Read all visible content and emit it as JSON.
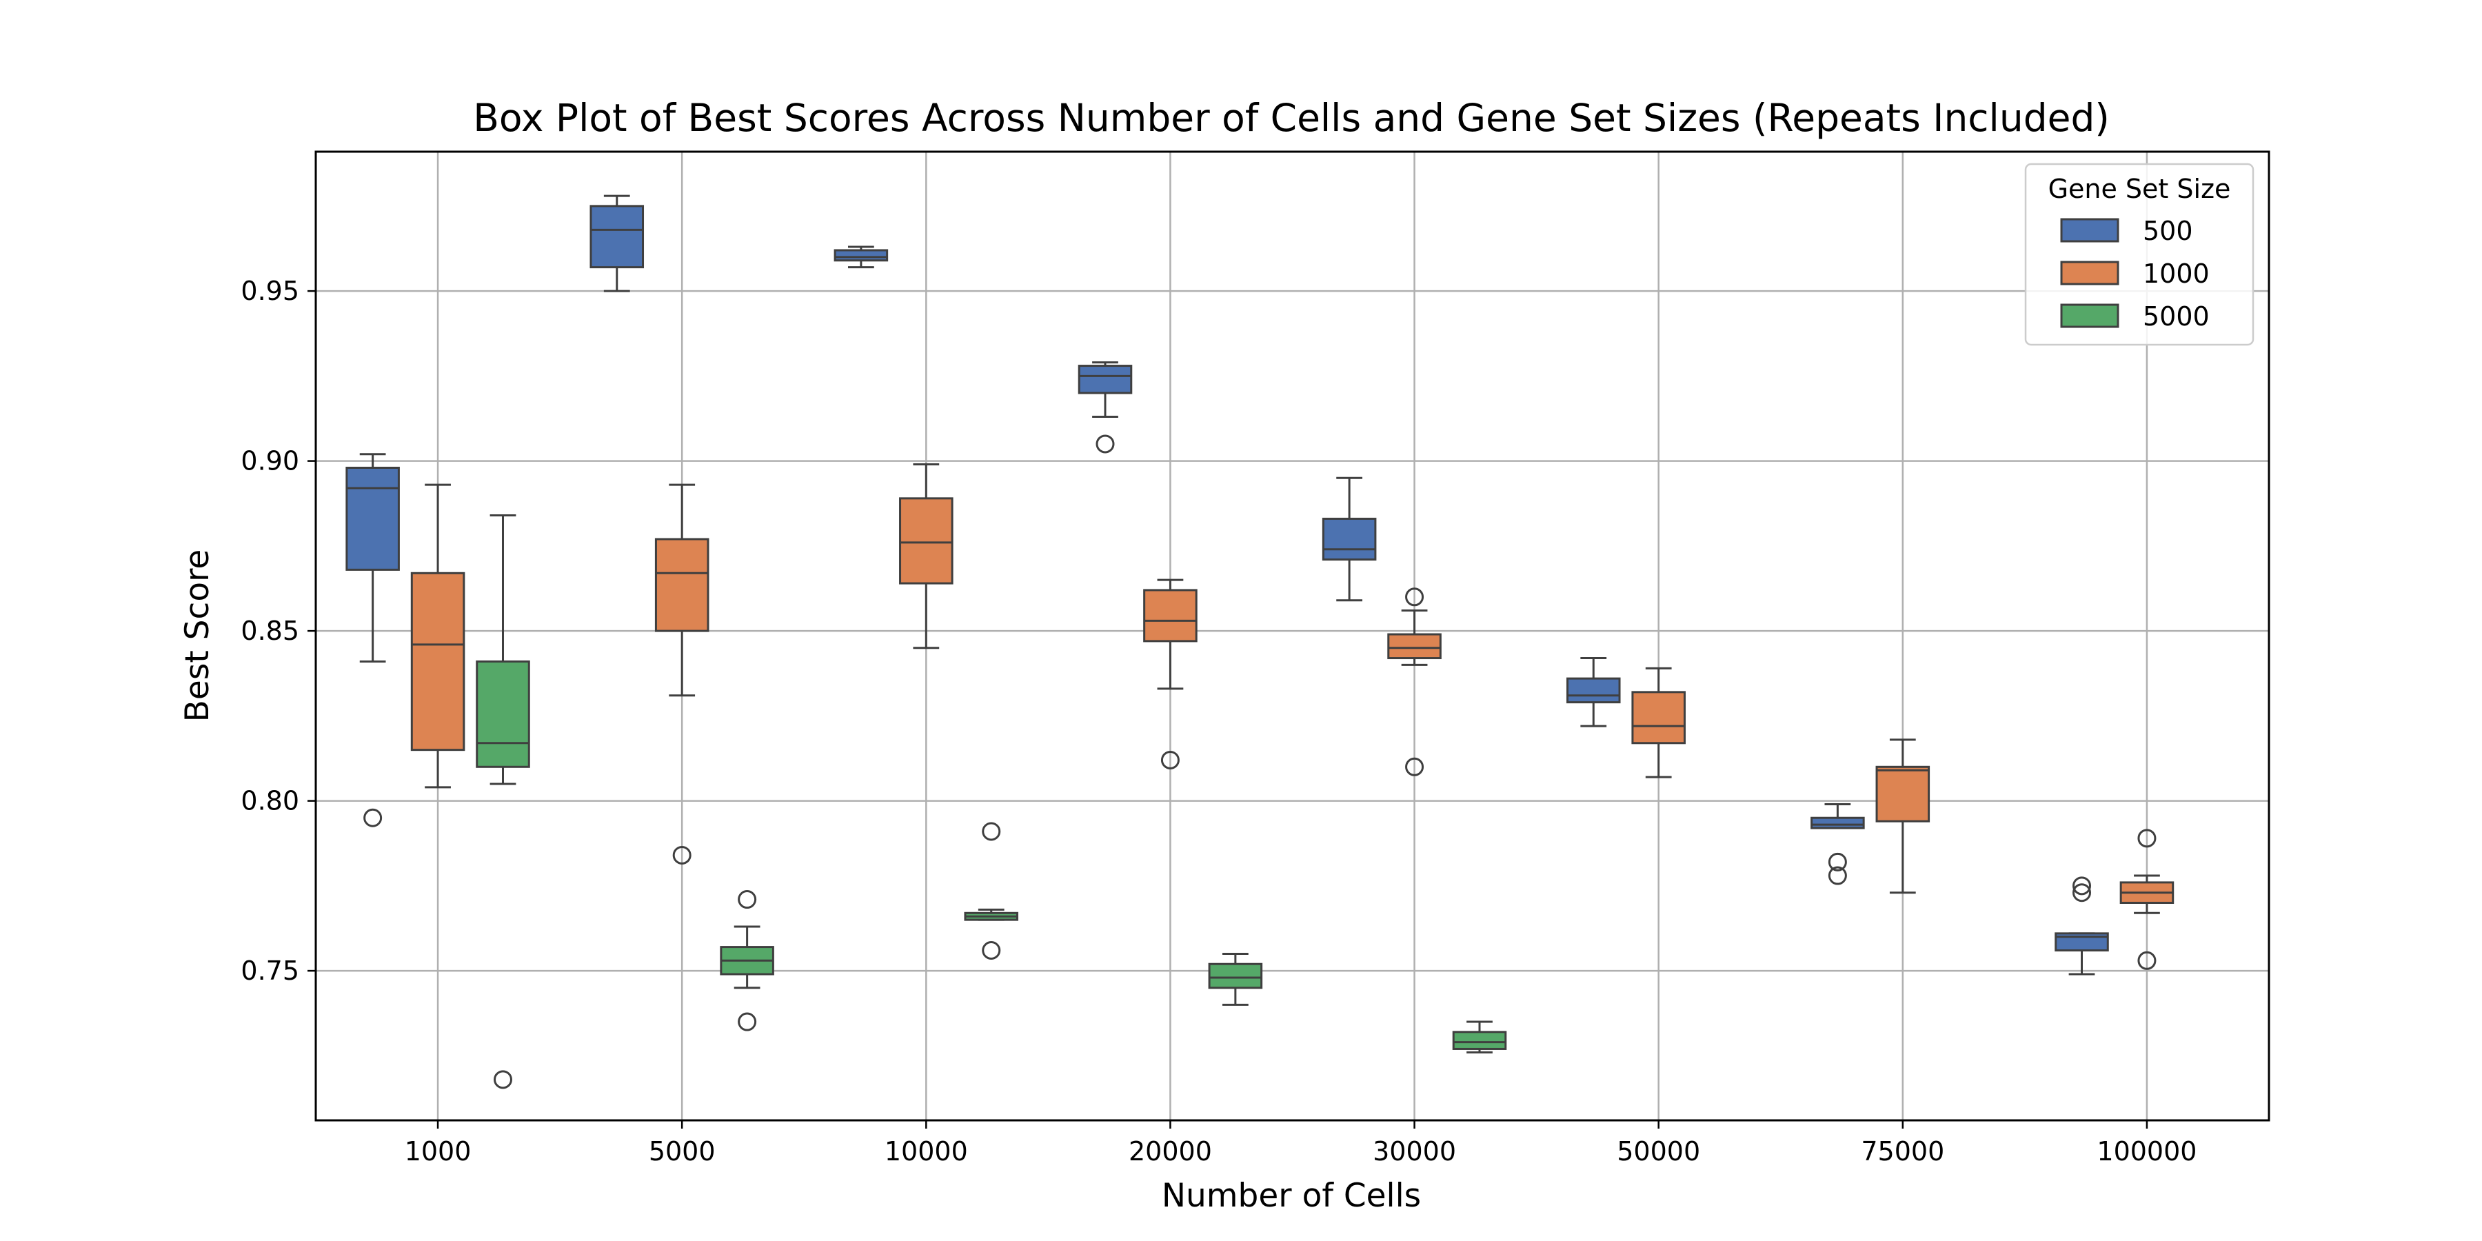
{
  "chart_data": {
    "type": "box",
    "title": "Box Plot of Best Scores Across Number of Cells and Gene Set Sizes (Repeats Included)",
    "xlabel": "Number of Cells",
    "ylabel": "Best Score",
    "categories": [
      "1000",
      "5000",
      "10000",
      "20000",
      "30000",
      "50000",
      "75000",
      "100000"
    ],
    "ylim": [
      0.706,
      0.991
    ],
    "yticks": [
      0.75,
      0.8,
      0.85,
      0.9,
      0.95
    ],
    "ytick_labels": [
      "0.75",
      "0.80",
      "0.85",
      "0.90",
      "0.95"
    ],
    "grid": true,
    "legend": {
      "title": "Gene Set Size",
      "placement": "top-right"
    },
    "series": [
      {
        "name": "500",
        "color": "#4c72b0",
        "boxes": [
          {
            "category": "1000",
            "whisker_low": 0.841,
            "q1": 0.868,
            "median": 0.892,
            "q3": 0.898,
            "whisker_high": 0.902,
            "outliers": [
              0.795
            ]
          },
          {
            "category": "5000",
            "whisker_low": 0.95,
            "q1": 0.957,
            "median": 0.968,
            "q3": 0.975,
            "whisker_high": 0.978,
            "outliers": []
          },
          {
            "category": "10000",
            "whisker_low": 0.957,
            "q1": 0.959,
            "median": 0.96,
            "q3": 0.962,
            "whisker_high": 0.963,
            "outliers": []
          },
          {
            "category": "20000",
            "whisker_low": 0.913,
            "q1": 0.92,
            "median": 0.925,
            "q3": 0.928,
            "whisker_high": 0.929,
            "outliers": [
              0.905
            ]
          },
          {
            "category": "30000",
            "whisker_low": 0.859,
            "q1": 0.871,
            "median": 0.874,
            "q3": 0.883,
            "whisker_high": 0.895,
            "outliers": []
          },
          {
            "category": "50000",
            "whisker_low": 0.822,
            "q1": 0.829,
            "median": 0.831,
            "q3": 0.836,
            "whisker_high": 0.842,
            "outliers": []
          },
          {
            "category": "75000",
            "whisker_low": 0.792,
            "q1": 0.792,
            "median": 0.793,
            "q3": 0.795,
            "whisker_high": 0.799,
            "outliers": [
              0.782,
              0.778
            ]
          },
          {
            "category": "100000",
            "whisker_low": 0.749,
            "q1": 0.756,
            "median": 0.76,
            "q3": 0.761,
            "whisker_high": 0.761,
            "outliers": [
              0.775,
              0.773
            ]
          }
        ]
      },
      {
        "name": "1000",
        "color": "#dd8452",
        "boxes": [
          {
            "category": "1000",
            "whisker_low": 0.804,
            "q1": 0.815,
            "median": 0.846,
            "q3": 0.867,
            "whisker_high": 0.893,
            "outliers": []
          },
          {
            "category": "5000",
            "whisker_low": 0.831,
            "q1": 0.85,
            "median": 0.867,
            "q3": 0.877,
            "whisker_high": 0.893,
            "outliers": [
              0.784
            ]
          },
          {
            "category": "10000",
            "whisker_low": 0.845,
            "q1": 0.864,
            "median": 0.876,
            "q3": 0.889,
            "whisker_high": 0.899,
            "outliers": []
          },
          {
            "category": "20000",
            "whisker_low": 0.833,
            "q1": 0.847,
            "median": 0.853,
            "q3": 0.862,
            "whisker_high": 0.865,
            "outliers": [
              0.812
            ]
          },
          {
            "category": "30000",
            "whisker_low": 0.84,
            "q1": 0.842,
            "median": 0.845,
            "q3": 0.849,
            "whisker_high": 0.856,
            "outliers": [
              0.86,
              0.81
            ]
          },
          {
            "category": "50000",
            "whisker_low": 0.807,
            "q1": 0.817,
            "median": 0.822,
            "q3": 0.832,
            "whisker_high": 0.839,
            "outliers": []
          },
          {
            "category": "75000",
            "whisker_low": 0.773,
            "q1": 0.794,
            "median": 0.809,
            "q3": 0.81,
            "whisker_high": 0.818,
            "outliers": []
          },
          {
            "category": "100000",
            "whisker_low": 0.767,
            "q1": 0.77,
            "median": 0.773,
            "q3": 0.776,
            "whisker_high": 0.778,
            "outliers": [
              0.789,
              0.753
            ]
          }
        ]
      },
      {
        "name": "5000",
        "color": "#55a868",
        "boxes": [
          {
            "category": "1000",
            "whisker_low": 0.805,
            "q1": 0.81,
            "median": 0.817,
            "q3": 0.841,
            "whisker_high": 0.884,
            "outliers": [
              0.718
            ]
          },
          {
            "category": "5000",
            "whisker_low": 0.745,
            "q1": 0.749,
            "median": 0.753,
            "q3": 0.757,
            "whisker_high": 0.763,
            "outliers": [
              0.771,
              0.735
            ]
          },
          {
            "category": "10000",
            "whisker_low": 0.765,
            "q1": 0.765,
            "median": 0.766,
            "q3": 0.767,
            "whisker_high": 0.768,
            "outliers": [
              0.791,
              0.756
            ]
          },
          {
            "category": "20000",
            "whisker_low": 0.74,
            "q1": 0.745,
            "median": 0.748,
            "q3": 0.752,
            "whisker_high": 0.755,
            "outliers": []
          },
          {
            "category": "30000",
            "whisker_low": 0.726,
            "q1": 0.727,
            "median": 0.729,
            "q3": 0.732,
            "whisker_high": 0.735,
            "outliers": []
          }
        ]
      }
    ]
  }
}
